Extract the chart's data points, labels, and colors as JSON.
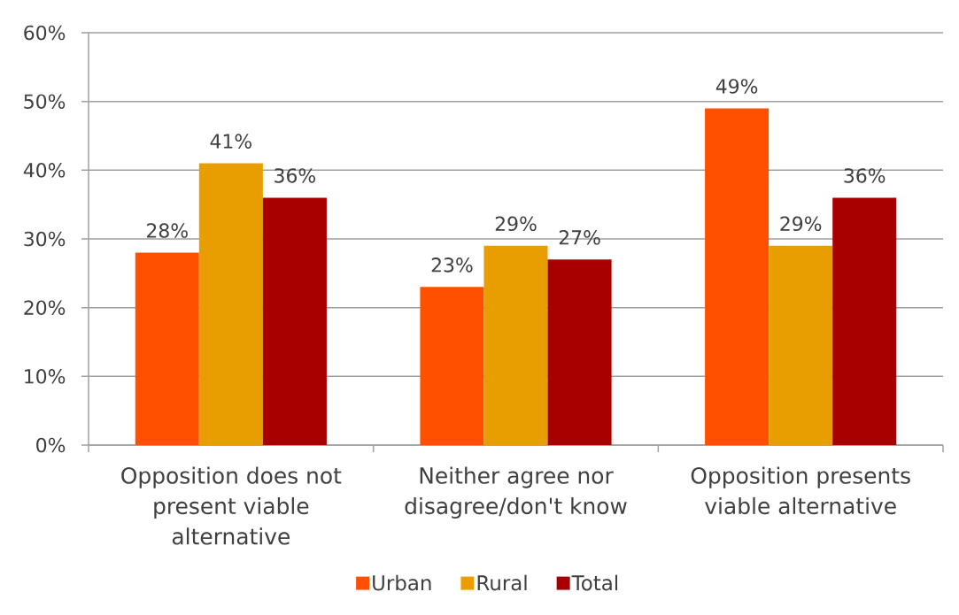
{
  "chart_data": {
    "type": "bar",
    "categories": [
      "Opposition does not present viable alternative",
      "Neither agree nor disagree/don't know",
      "Opposition presents viable alternative"
    ],
    "series": [
      {
        "name": "Urban",
        "color": "#ff5000",
        "values": [
          28,
          23,
          49
        ],
        "value_labels": [
          "28%",
          "23%",
          "49%"
        ]
      },
      {
        "name": "Rural",
        "color": "#e89e00",
        "values": [
          41,
          29,
          29
        ],
        "value_labels": [
          "41%",
          "29%",
          "29%"
        ]
      },
      {
        "name": "Total",
        "color": "#a80000",
        "values": [
          36,
          27,
          36
        ],
        "value_labels": [
          "36%",
          "27%",
          "36%"
        ]
      }
    ],
    "ylim": [
      0,
      60
    ],
    "yticks": [
      {
        "value": 0,
        "label": "0%"
      },
      {
        "value": 10,
        "label": "10%"
      },
      {
        "value": 20,
        "label": "20%"
      },
      {
        "value": 30,
        "label": "30%"
      },
      {
        "value": 40,
        "label": "40%"
      },
      {
        "value": 50,
        "label": "50%"
      },
      {
        "value": 60,
        "label": "60%"
      }
    ],
    "grid": "y",
    "legend": "bottom"
  }
}
